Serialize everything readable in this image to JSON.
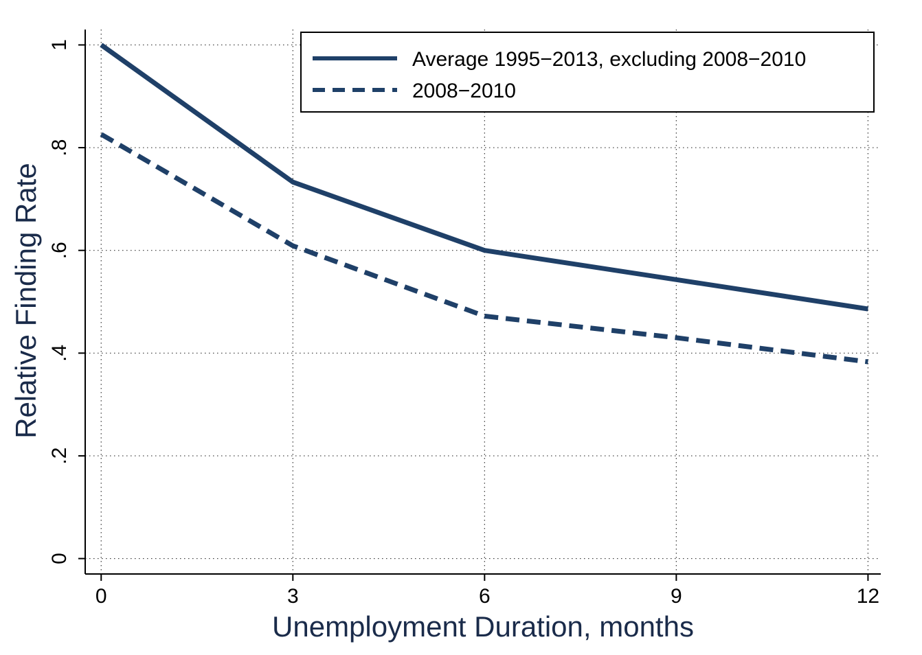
{
  "chart_data": {
    "type": "line",
    "xlabel": "Unemployment Duration, months",
    "ylabel": "Relative Finding Rate",
    "x": [
      0,
      3,
      6,
      9,
      12
    ],
    "xticks": [
      0,
      3,
      6,
      9,
      12
    ],
    "xtick_labels": [
      "0",
      "3",
      "6",
      "9",
      "12"
    ],
    "yticks": [
      0,
      0.2,
      0.4,
      0.6,
      0.8,
      1
    ],
    "ytick_labels": [
      "0",
      ".2",
      ".4",
      ".6",
      ".8",
      "1"
    ],
    "xlim": [
      -0.25,
      12.2
    ],
    "ylim": [
      -0.03,
      1.03
    ],
    "grid": true,
    "legend_position": "top-right",
    "series": [
      {
        "name": "Average 1995−2013, excluding 2008−2010",
        "style": "solid",
        "color": "#1f4068",
        "values": [
          1.0,
          0.733,
          0.6,
          0.543,
          0.486
        ]
      },
      {
        "name": "2008−2010",
        "style": "dashed",
        "color": "#1f4068",
        "values": [
          0.826,
          0.609,
          0.472,
          0.43,
          0.383
        ]
      }
    ]
  }
}
